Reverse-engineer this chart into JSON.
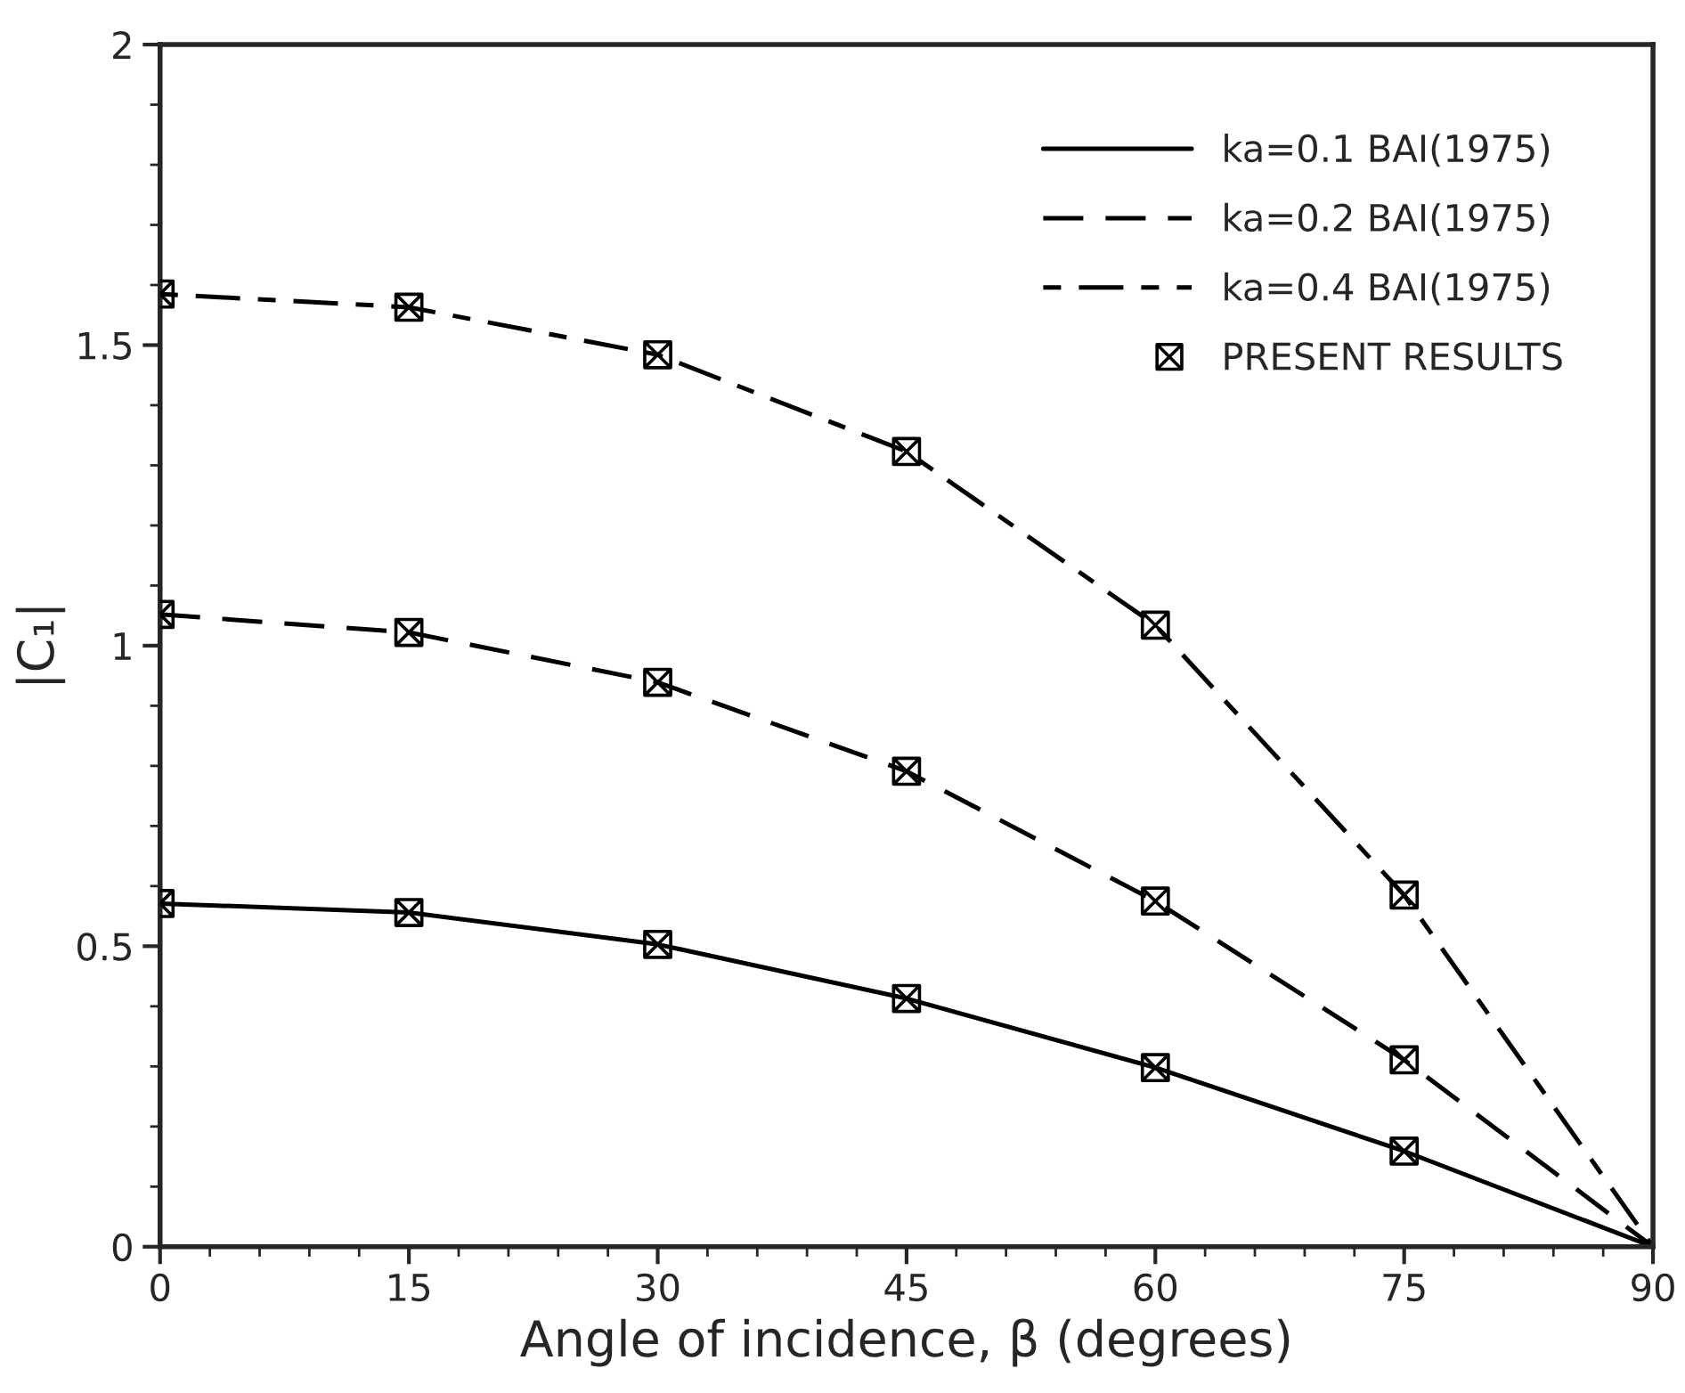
{
  "chart_data": {
    "type": "line",
    "xlabel": "Angle of incidence, β (degrees)",
    "ylabel": "|C₁|",
    "x": [
      0,
      15,
      30,
      45,
      60,
      75,
      90
    ],
    "series": [
      {
        "name": "ka=0.1 BAI(1975)",
        "color": "#000000",
        "line_style": "solid",
        "marker": "none",
        "values": [
          0.571,
          0.556,
          0.503,
          0.413,
          0.298,
          0.159,
          0
        ]
      },
      {
        "name": "ka=0.2 BAI(1975)",
        "color": "#000000",
        "line_style": "dashed",
        "marker": "none",
        "values": [
          1.052,
          1.022,
          0.939,
          0.791,
          0.575,
          0.311,
          0
        ]
      },
      {
        "name": "ka=0.4 BAI(1975)",
        "color": "#000000",
        "line_style": "dotted",
        "marker": "none",
        "values": [
          1.585,
          1.563,
          1.484,
          1.323,
          1.034,
          0.585,
          0
        ]
      },
      {
        "name": "PRESENT RESULTS",
        "type": "scatter",
        "color": "#000000",
        "marker": "cross",
        "x": [
          0,
          15,
          30,
          45,
          60,
          75,
          0,
          15,
          30,
          45,
          60,
          75,
          0,
          15,
          30,
          45,
          60,
          75
        ],
        "values": [
          0.571,
          0.556,
          0.503,
          0.413,
          0.298,
          0.159,
          1.052,
          1.022,
          0.939,
          0.791,
          0.575,
          0.311,
          1.585,
          1.563,
          1.484,
          1.323,
          1.034,
          0.585
        ]
      }
    ],
    "xlim": [
      0,
      90
    ],
    "xticks": [
      0,
      15,
      30,
      45,
      60,
      75,
      90
    ],
    "ylim": [
      0,
      2
    ],
    "yticks": [
      0,
      0.5,
      1,
      1.5,
      2
    ],
    "grid": false,
    "legend": "top right"
  }
}
